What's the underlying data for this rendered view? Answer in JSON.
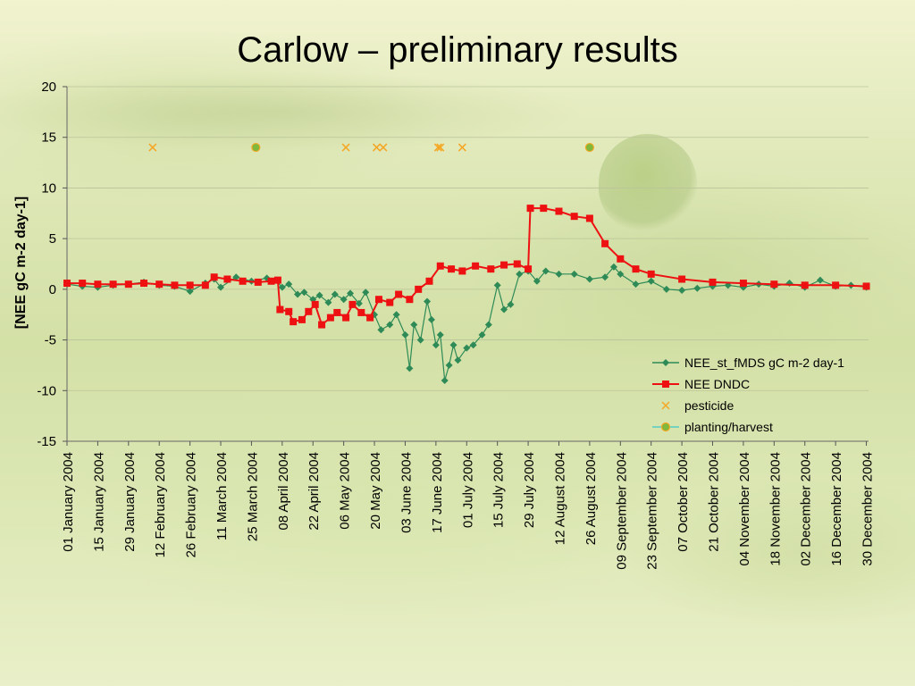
{
  "slide": {
    "title": "Carlow – preliminary results"
  },
  "chart_data": {
    "type": "line",
    "title": "",
    "xlabel": "",
    "ylabel": "[NEE gC m-2 day-1]",
    "xlim": [
      "2004-01-01",
      "2004-12-31"
    ],
    "ylim": [
      -15,
      20
    ],
    "y_ticks": [
      -15,
      -10,
      -5,
      0,
      5,
      10,
      15,
      20
    ],
    "x_tick_labels": [
      {
        "date": "2004-01-01",
        "label": "01 January 2004"
      },
      {
        "date": "2004-01-15",
        "label": "15 January 2004"
      },
      {
        "date": "2004-01-29",
        "label": "29 January 2004"
      },
      {
        "date": "2004-02-12",
        "label": "12 February 2004"
      },
      {
        "date": "2004-02-26",
        "label": "26 February 2004"
      },
      {
        "date": "2004-03-11",
        "label": "11 March 2004"
      },
      {
        "date": "2004-03-25",
        "label": "25 March 2004"
      },
      {
        "date": "2004-04-08",
        "label": "08 April 2004"
      },
      {
        "date": "2004-04-22",
        "label": "22 April 2004"
      },
      {
        "date": "2004-05-06",
        "label": "06 May 2004"
      },
      {
        "date": "2004-05-20",
        "label": "20 May 2004"
      },
      {
        "date": "2004-06-03",
        "label": "03 June 2004"
      },
      {
        "date": "2004-06-17",
        "label": "17 June 2004"
      },
      {
        "date": "2004-07-01",
        "label": "01 July 2004"
      },
      {
        "date": "2004-07-15",
        "label": "15 July 2004"
      },
      {
        "date": "2004-07-29",
        "label": "29 July 2004"
      },
      {
        "date": "2004-08-12",
        "label": "12 August 2004"
      },
      {
        "date": "2004-08-26",
        "label": "26 August 2004"
      },
      {
        "date": "2004-09-09",
        "label": "09 September 2004"
      },
      {
        "date": "2004-09-23",
        "label": "23 September 2004"
      },
      {
        "date": "2004-10-07",
        "label": "07 October 2004"
      },
      {
        "date": "2004-10-21",
        "label": "21 October 2004"
      },
      {
        "date": "2004-11-04",
        "label": "04 November 2004"
      },
      {
        "date": "2004-11-18",
        "label": "18 November 2004"
      },
      {
        "date": "2004-12-02",
        "label": "02 December 2004"
      },
      {
        "date": "2004-12-16",
        "label": "16 December 2004"
      },
      {
        "date": "2004-12-30",
        "label": "30 December 2004"
      }
    ],
    "grid": {
      "horizontal": true,
      "vertical": false
    },
    "legend_position": "right-middle",
    "series": [
      {
        "name": "NEE_st_fMDS gC m-2 day-1",
        "color": "#2e8b57",
        "marker": "diamond",
        "points": [
          {
            "x": "2004-01-01",
            "y": 0.5
          },
          {
            "x": "2004-01-08",
            "y": 0.3
          },
          {
            "x": "2004-01-15",
            "y": 0.2
          },
          {
            "x": "2004-01-22",
            "y": 0.4
          },
          {
            "x": "2004-01-29",
            "y": 0.5
          },
          {
            "x": "2004-02-05",
            "y": 0.7
          },
          {
            "x": "2004-02-12",
            "y": 0.4
          },
          {
            "x": "2004-02-19",
            "y": 0.3
          },
          {
            "x": "2004-02-26",
            "y": -0.2
          },
          {
            "x": "2004-03-04",
            "y": 0.6
          },
          {
            "x": "2004-03-08",
            "y": 1.0
          },
          {
            "x": "2004-03-11",
            "y": 0.2
          },
          {
            "x": "2004-03-18",
            "y": 1.2
          },
          {
            "x": "2004-03-25",
            "y": 0.8
          },
          {
            "x": "2004-04-01",
            "y": 1.1
          },
          {
            "x": "2004-04-05",
            "y": 0.9
          },
          {
            "x": "2004-04-08",
            "y": 0.2
          },
          {
            "x": "2004-04-11",
            "y": 0.5
          },
          {
            "x": "2004-04-15",
            "y": -0.5
          },
          {
            "x": "2004-04-18",
            "y": -0.3
          },
          {
            "x": "2004-04-22",
            "y": -1.0
          },
          {
            "x": "2004-04-25",
            "y": -0.6
          },
          {
            "x": "2004-04-29",
            "y": -1.3
          },
          {
            "x": "2004-05-02",
            "y": -0.5
          },
          {
            "x": "2004-05-06",
            "y": -1.0
          },
          {
            "x": "2004-05-09",
            "y": -0.4
          },
          {
            "x": "2004-05-13",
            "y": -1.4
          },
          {
            "x": "2004-05-16",
            "y": -0.3
          },
          {
            "x": "2004-05-20",
            "y": -2.5
          },
          {
            "x": "2004-05-23",
            "y": -4.0
          },
          {
            "x": "2004-05-27",
            "y": -3.5
          },
          {
            "x": "2004-05-30",
            "y": -2.5
          },
          {
            "x": "2004-06-03",
            "y": -4.5
          },
          {
            "x": "2004-06-05",
            "y": -7.8
          },
          {
            "x": "2004-06-07",
            "y": -3.5
          },
          {
            "x": "2004-06-10",
            "y": -5.0
          },
          {
            "x": "2004-06-13",
            "y": -1.2
          },
          {
            "x": "2004-06-15",
            "y": -3.0
          },
          {
            "x": "2004-06-17",
            "y": -5.5
          },
          {
            "x": "2004-06-19",
            "y": -4.5
          },
          {
            "x": "2004-06-21",
            "y": -9.0
          },
          {
            "x": "2004-06-23",
            "y": -7.5
          },
          {
            "x": "2004-06-25",
            "y": -5.5
          },
          {
            "x": "2004-06-27",
            "y": -7.0
          },
          {
            "x": "2004-07-01",
            "y": -5.8
          },
          {
            "x": "2004-07-04",
            "y": -5.5
          },
          {
            "x": "2004-07-08",
            "y": -4.5
          },
          {
            "x": "2004-07-11",
            "y": -3.5
          },
          {
            "x": "2004-07-15",
            "y": 0.4
          },
          {
            "x": "2004-07-18",
            "y": -2.0
          },
          {
            "x": "2004-07-21",
            "y": -1.5
          },
          {
            "x": "2004-07-25",
            "y": 1.5
          },
          {
            "x": "2004-07-29",
            "y": 1.8
          },
          {
            "x": "2004-08-02",
            "y": 0.8
          },
          {
            "x": "2004-08-06",
            "y": 1.8
          },
          {
            "x": "2004-08-12",
            "y": 1.5
          },
          {
            "x": "2004-08-19",
            "y": 1.5
          },
          {
            "x": "2004-08-26",
            "y": 1.0
          },
          {
            "x": "2004-09-02",
            "y": 1.2
          },
          {
            "x": "2004-09-06",
            "y": 2.2
          },
          {
            "x": "2004-09-09",
            "y": 1.5
          },
          {
            "x": "2004-09-16",
            "y": 0.5
          },
          {
            "x": "2004-09-23",
            "y": 0.8
          },
          {
            "x": "2004-09-30",
            "y": 0.0
          },
          {
            "x": "2004-10-07",
            "y": -0.1
          },
          {
            "x": "2004-10-14",
            "y": 0.1
          },
          {
            "x": "2004-10-21",
            "y": 0.3
          },
          {
            "x": "2004-10-28",
            "y": 0.4
          },
          {
            "x": "2004-11-04",
            "y": 0.2
          },
          {
            "x": "2004-11-11",
            "y": 0.5
          },
          {
            "x": "2004-11-18",
            "y": 0.3
          },
          {
            "x": "2004-11-25",
            "y": 0.6
          },
          {
            "x": "2004-12-02",
            "y": 0.2
          },
          {
            "x": "2004-12-09",
            "y": 0.9
          },
          {
            "x": "2004-12-16",
            "y": 0.3
          },
          {
            "x": "2004-12-23",
            "y": 0.4
          },
          {
            "x": "2004-12-30",
            "y": 0.2
          }
        ]
      },
      {
        "name": "NEE DNDC",
        "color": "#ee1111",
        "marker": "square",
        "points": [
          {
            "x": "2004-01-01",
            "y": 0.6
          },
          {
            "x": "2004-01-08",
            "y": 0.6
          },
          {
            "x": "2004-01-15",
            "y": 0.5
          },
          {
            "x": "2004-01-22",
            "y": 0.5
          },
          {
            "x": "2004-01-29",
            "y": 0.5
          },
          {
            "x": "2004-02-05",
            "y": 0.6
          },
          {
            "x": "2004-02-12",
            "y": 0.5
          },
          {
            "x": "2004-02-19",
            "y": 0.4
          },
          {
            "x": "2004-02-26",
            "y": 0.4
          },
          {
            "x": "2004-03-04",
            "y": 0.4
          },
          {
            "x": "2004-03-08",
            "y": 1.2
          },
          {
            "x": "2004-03-14",
            "y": 1.0
          },
          {
            "x": "2004-03-21",
            "y": 0.8
          },
          {
            "x": "2004-03-28",
            "y": 0.7
          },
          {
            "x": "2004-04-03",
            "y": 0.8
          },
          {
            "x": "2004-04-06",
            "y": 0.9
          },
          {
            "x": "2004-04-07",
            "y": -2.0
          },
          {
            "x": "2004-04-11",
            "y": -2.2
          },
          {
            "x": "2004-04-13",
            "y": -3.2
          },
          {
            "x": "2004-04-17",
            "y": -3.0
          },
          {
            "x": "2004-04-20",
            "y": -2.2
          },
          {
            "x": "2004-04-23",
            "y": -1.5
          },
          {
            "x": "2004-04-26",
            "y": -3.5
          },
          {
            "x": "2004-04-30",
            "y": -2.8
          },
          {
            "x": "2004-05-03",
            "y": -2.3
          },
          {
            "x": "2004-05-07",
            "y": -2.8
          },
          {
            "x": "2004-05-10",
            "y": -1.5
          },
          {
            "x": "2004-05-14",
            "y": -2.3
          },
          {
            "x": "2004-05-18",
            "y": -2.8
          },
          {
            "x": "2004-05-22",
            "y": -1.0
          },
          {
            "x": "2004-05-27",
            "y": -1.3
          },
          {
            "x": "2004-05-31",
            "y": -0.5
          },
          {
            "x": "2004-06-05",
            "y": -1.0
          },
          {
            "x": "2004-06-09",
            "y": 0.0
          },
          {
            "x": "2004-06-14",
            "y": 0.8
          },
          {
            "x": "2004-06-19",
            "y": 2.3
          },
          {
            "x": "2004-06-24",
            "y": 2.0
          },
          {
            "x": "2004-06-29",
            "y": 1.8
          },
          {
            "x": "2004-07-05",
            "y": 2.3
          },
          {
            "x": "2004-07-12",
            "y": 2.0
          },
          {
            "x": "2004-07-18",
            "y": 2.4
          },
          {
            "x": "2004-07-24",
            "y": 2.5
          },
          {
            "x": "2004-07-29",
            "y": 2.0
          },
          {
            "x": "2004-07-30",
            "y": 8.0
          },
          {
            "x": "2004-08-05",
            "y": 8.0
          },
          {
            "x": "2004-08-12",
            "y": 7.7
          },
          {
            "x": "2004-08-19",
            "y": 7.2
          },
          {
            "x": "2004-08-26",
            "y": 7.0
          },
          {
            "x": "2004-09-02",
            "y": 4.5
          },
          {
            "x": "2004-09-09",
            "y": 3.0
          },
          {
            "x": "2004-09-16",
            "y": 2.0
          },
          {
            "x": "2004-09-23",
            "y": 1.5
          },
          {
            "x": "2004-10-07",
            "y": 1.0
          },
          {
            "x": "2004-10-21",
            "y": 0.7
          },
          {
            "x": "2004-11-04",
            "y": 0.6
          },
          {
            "x": "2004-11-18",
            "y": 0.5
          },
          {
            "x": "2004-12-02",
            "y": 0.4
          },
          {
            "x": "2004-12-16",
            "y": 0.4
          },
          {
            "x": "2004-12-30",
            "y": 0.3
          }
        ]
      },
      {
        "name": "pesticide",
        "color": "#f5a623",
        "marker": "x",
        "points": [
          {
            "x": "2004-02-09",
            "y": 14
          },
          {
            "x": "2004-05-07",
            "y": 14
          },
          {
            "x": "2004-05-21",
            "y": 14
          },
          {
            "x": "2004-05-24",
            "y": 14
          },
          {
            "x": "2004-06-18",
            "y": 14
          },
          {
            "x": "2004-06-19",
            "y": 14
          },
          {
            "x": "2004-06-29",
            "y": 14
          }
        ]
      },
      {
        "name": "planting/harvest",
        "color": "#7fb83a",
        "marker": "circle",
        "points": [
          {
            "x": "2004-03-27",
            "y": 14
          },
          {
            "x": "2004-08-26",
            "y": 14
          }
        ]
      }
    ]
  }
}
